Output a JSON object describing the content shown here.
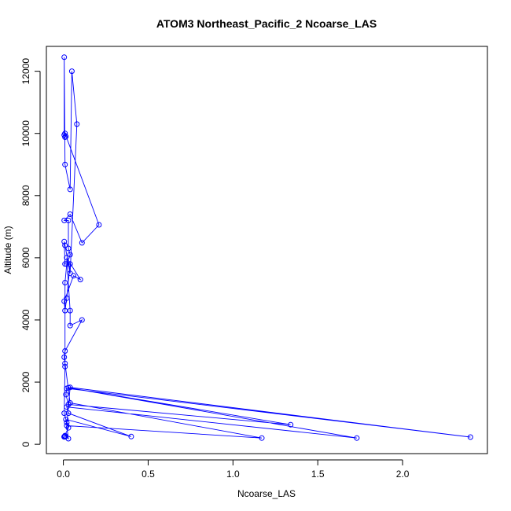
{
  "chart_data": {
    "type": "line",
    "title": "ATOM3 Northeast_Pacific_2 Ncoarse_LAS",
    "xlabel": "Ncoarse_LAS",
    "ylabel": "Altitude (m)",
    "xlim": [
      -0.1,
      2.5
    ],
    "ylim": [
      -300,
      12800
    ],
    "xticks": [
      0,
      0.5,
      1,
      1.5,
      2
    ],
    "xtick_labels": [
      "0.0",
      "0.5",
      "1.0",
      "1.5",
      "2.0"
    ],
    "yticks": [
      0,
      2000,
      4000,
      6000,
      8000,
      10000,
      12000
    ],
    "ytick_labels": [
      "0",
      "2000",
      "4000",
      "6000",
      "8000",
      "10000",
      "12000"
    ],
    "grid": false,
    "legend": false,
    "color": "#0000ff",
    "series": [
      {
        "x": [
          0.01,
          0.01,
          0.005,
          0.03,
          0.02,
          0.005,
          0.01,
          0.01,
          0.02,
          0.04,
          0.03,
          0.03,
          0.005,
          0.04,
          0.11,
          0.21,
          0.01,
          0.015,
          0.01,
          0.005,
          0.005,
          0.01,
          0.04,
          0.05,
          0.08,
          0.04,
          0.01,
          0.005,
          0.01,
          0.04,
          0.02,
          0.01,
          0.005,
          0.06,
          0.1,
          0.02,
          0.04,
          0.04,
          0.11,
          0.01,
          0.005,
          0.01,
          0.04,
          1.17,
          0.02,
          0.04,
          2.4,
          0.02,
          0.015,
          0.03,
          1.34,
          0.03,
          1.73,
          0.02,
          0.03,
          0.4,
          0.015,
          0.03,
          0.01,
          0.005
        ],
        "y": [
          240,
          270,
          240,
          530,
          700,
          1000,
          2500,
          5200,
          5800,
          6100,
          6300,
          7200,
          7200,
          7400,
          6480,
          7060,
          10000,
          9900,
          9880,
          9950,
          12450,
          9000,
          8200,
          12000,
          10300,
          5500,
          6400,
          6520,
          5800,
          5800,
          4700,
          4300,
          4600,
          5420,
          5300,
          6000,
          4300,
          3820,
          4000,
          3000,
          2800,
          2600,
          1330,
          200,
          600,
          1830,
          230,
          1800,
          1600,
          1280,
          630,
          1820,
          200,
          1200,
          1000,
          250,
          800,
          180,
          280,
          240
        ]
      }
    ]
  }
}
